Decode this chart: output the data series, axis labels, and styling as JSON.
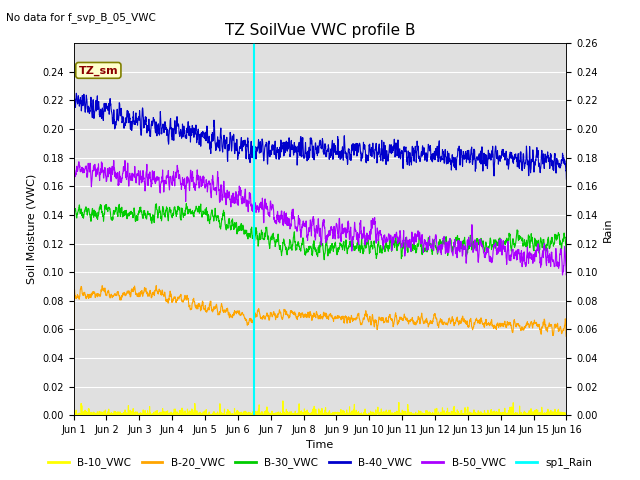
{
  "title": "TZ SoilVue VWC profile B",
  "top_left_text": "No data for f_svp_B_05_VWC",
  "annotation_box": "TZ_sm",
  "xlabel": "Time",
  "ylabel_left": "Soil Moisture (VWC)",
  "ylabel_right": "Rain",
  "xlim": [
    1,
    16
  ],
  "ylim_left": [
    0.0,
    0.26
  ],
  "ylim_right": [
    0.0,
    0.26
  ],
  "yticks_left": [
    0.0,
    0.02,
    0.04,
    0.06,
    0.08,
    0.1,
    0.12,
    0.14,
    0.16,
    0.18,
    0.2,
    0.22,
    0.24
  ],
  "yticks_right": [
    0.0,
    0.02,
    0.04,
    0.06,
    0.08,
    0.1,
    0.12,
    0.14,
    0.16,
    0.18,
    0.2,
    0.22,
    0.24,
    0.26
  ],
  "xtick_positions": [
    1,
    2,
    3,
    4,
    5,
    6,
    7,
    8,
    9,
    10,
    11,
    12,
    13,
    14,
    15,
    16
  ],
  "xtick_labels": [
    "Jun 1",
    "Jun 2",
    "Jun 3",
    "Jun 4",
    "Jun 5",
    "Jun 6",
    "Jun 7",
    "Jun 8",
    "Jun 9",
    "Jun 10",
    "Jun 11",
    "Jun 12",
    "Jun 13",
    "Jun 14",
    "Jun 15",
    "Jun 16"
  ],
  "vline_day": 6.5,
  "vline_color": "cyan",
  "colors": {
    "B10": "#ffff00",
    "B20": "#ffa500",
    "B30": "#00cc00",
    "B40": "#0000cc",
    "B50": "#aa00ff"
  },
  "legend_labels": [
    "B-10_VWC",
    "B-20_VWC",
    "B-30_VWC",
    "B-40_VWC",
    "B-50_VWC",
    "sp1_Rain"
  ],
  "legend_colors": [
    "#ffff00",
    "#ffa500",
    "#00cc00",
    "#0000cc",
    "#aa00ff",
    "cyan"
  ],
  "background_color": "#e0e0e0",
  "grid_color": "#ffffff",
  "fig_width": 6.4,
  "fig_height": 4.8,
  "dpi": 100
}
